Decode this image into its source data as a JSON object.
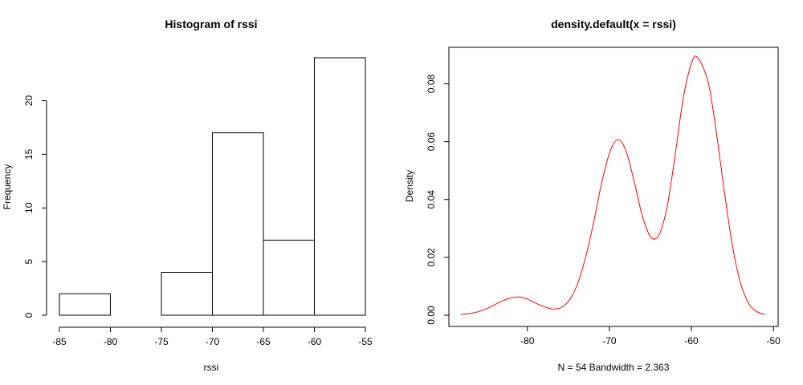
{
  "chart_data": [
    {
      "type": "bar",
      "title": "Histogram of rssi",
      "xlabel": "rssi",
      "ylabel": "Frequency",
      "bins": [
        {
          "x0": -85,
          "x1": -80,
          "count": 2
        },
        {
          "x0": -80,
          "x1": -75,
          "count": 0
        },
        {
          "x0": -75,
          "x1": -70,
          "count": 4
        },
        {
          "x0": -70,
          "x1": -65,
          "count": 17
        },
        {
          "x0": -65,
          "x1": -60,
          "count": 7
        },
        {
          "x0": -60,
          "x1": -55,
          "count": 24
        }
      ],
      "x_ticks": [
        -85,
        -80,
        -75,
        -70,
        -65,
        -60,
        -55
      ],
      "y_ticks": [
        0,
        5,
        10,
        15,
        20
      ],
      "xlim": [
        -85,
        -55
      ],
      "ylim": [
        0,
        24
      ],
      "bar_fill": "#ffffff",
      "bar_stroke": "#000000"
    },
    {
      "type": "line",
      "title": "density.default(x = rssi)",
      "xlabel": "N = 54   Bandwidth = 2.363",
      "ylabel": "Density",
      "x_ticks": [
        -80,
        -70,
        -60,
        -50
      ],
      "y_ticks": [
        "0.00",
        "0.02",
        "0.04",
        "0.06",
        "0.08"
      ],
      "xlim": [
        -88.1,
        -50.9
      ],
      "ylim": [
        0,
        0.089
      ],
      "line_color": "#ff0000",
      "series": [
        {
          "x": [
            -88.1,
            -87,
            -86,
            -85,
            -84,
            -83,
            -82,
            -81,
            -80,
            -79,
            -78,
            -77,
            -76,
            -75,
            -74,
            -73,
            -72,
            -71,
            -70,
            -69,
            -68,
            -67,
            -66,
            -65,
            -64,
            -63,
            -62,
            -61,
            -60,
            -59.3,
            -58,
            -57,
            -56,
            -55,
            -54,
            -53,
            -52,
            -51
          ],
          "y": [
            0.0003,
            0.0006,
            0.0012,
            0.0022,
            0.0036,
            0.005,
            0.006,
            0.0063,
            0.0056,
            0.0042,
            0.003,
            0.0022,
            0.0025,
            0.0048,
            0.01,
            0.019,
            0.031,
            0.045,
            0.056,
            0.0607,
            0.057,
            0.0465,
            0.0345,
            0.0272,
            0.0275,
            0.037,
            0.055,
            0.075,
            0.087,
            0.0892,
            0.081,
            0.064,
            0.043,
            0.024,
            0.011,
            0.004,
            0.0012,
            0.0003
          ]
        }
      ]
    }
  ]
}
